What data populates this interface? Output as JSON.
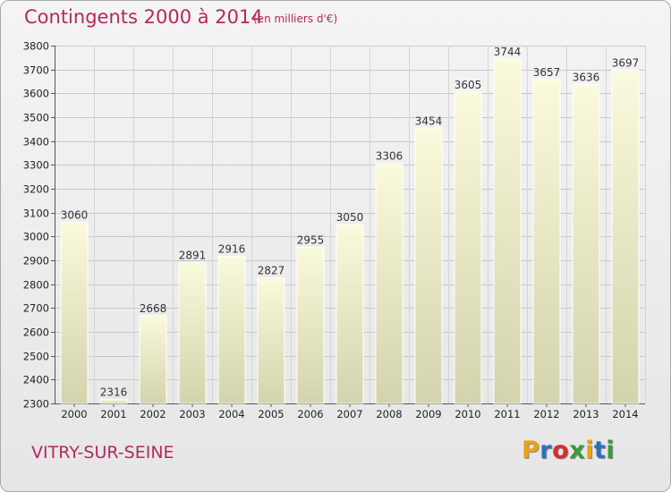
{
  "header": {
    "title": "Contingents 2000 à 2014",
    "subtitle": "(en milliers d'€)"
  },
  "footer": {
    "city": "VITRY-SUR-SEINE",
    "logo_letters": [
      "P",
      "r",
      "o",
      "x",
      "i",
      "t",
      "i"
    ]
  },
  "colors": {
    "title": "#b5285f",
    "bar_top": "#fafadc",
    "bar_bottom": "#d3d3ac",
    "logo": [
      "#e8a317",
      "#2e6fc0",
      "#d62d2d",
      "#3a9a3a",
      "#e8a317",
      "#2e6fc0",
      "#3a9a3a"
    ]
  },
  "chart_data": {
    "type": "bar",
    "categories": [
      "2000",
      "2001",
      "2002",
      "2003",
      "2004",
      "2005",
      "2006",
      "2007",
      "2008",
      "2009",
      "2010",
      "2011",
      "2012",
      "2013",
      "2014"
    ],
    "values": [
      3060,
      2316,
      2668,
      2891,
      2916,
      2827,
      2955,
      3050,
      3306,
      3454,
      3605,
      3744,
      3657,
      3636,
      3697
    ],
    "title": "Contingents 2000 à 2014",
    "subtitle": "(en milliers d'€)",
    "xlabel": "",
    "ylabel": "",
    "ylim": [
      2300,
      3800
    ],
    "yticks": [
      2300,
      2400,
      2500,
      2600,
      2700,
      2800,
      2900,
      3000,
      3100,
      3200,
      3300,
      3400,
      3500,
      3600,
      3700,
      3800
    ],
    "grid": true,
    "data_labels": true
  }
}
